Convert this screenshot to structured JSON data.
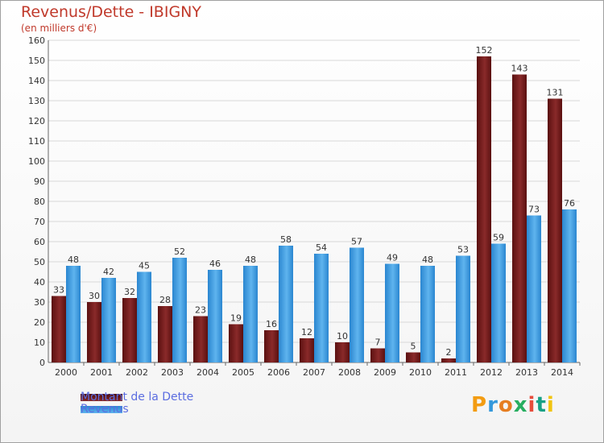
{
  "title": "Revenus/Dette - IBIGNY",
  "subtitle": "(en milliers d'€)",
  "logo_text": "Proxiti",
  "colors": {
    "dette": "#6b1a1a",
    "revenus": "#3d9be0",
    "grid": "#d8d8d8",
    "axis_text": "#333333"
  },
  "chart_data": {
    "type": "bar",
    "categories": [
      "2000",
      "2001",
      "2002",
      "2003",
      "2004",
      "2005",
      "2006",
      "2007",
      "2008",
      "2009",
      "2010",
      "2011",
      "2012",
      "2013",
      "2014"
    ],
    "series": [
      {
        "name": "Montant de la Dette",
        "values": [
          33,
          30,
          32,
          28,
          23,
          19,
          16,
          12,
          10,
          7,
          5,
          2,
          152,
          143,
          131
        ]
      },
      {
        "name": "Revenus",
        "values": [
          48,
          42,
          45,
          52,
          46,
          48,
          58,
          54,
          57,
          49,
          48,
          53,
          59,
          73,
          76
        ]
      }
    ],
    "ylim": [
      0,
      160
    ],
    "yticks": [
      0,
      10,
      20,
      30,
      40,
      50,
      60,
      70,
      80,
      90,
      100,
      110,
      120,
      130,
      140,
      150,
      160
    ],
    "grid": true,
    "legend_position": "bottom-left"
  }
}
